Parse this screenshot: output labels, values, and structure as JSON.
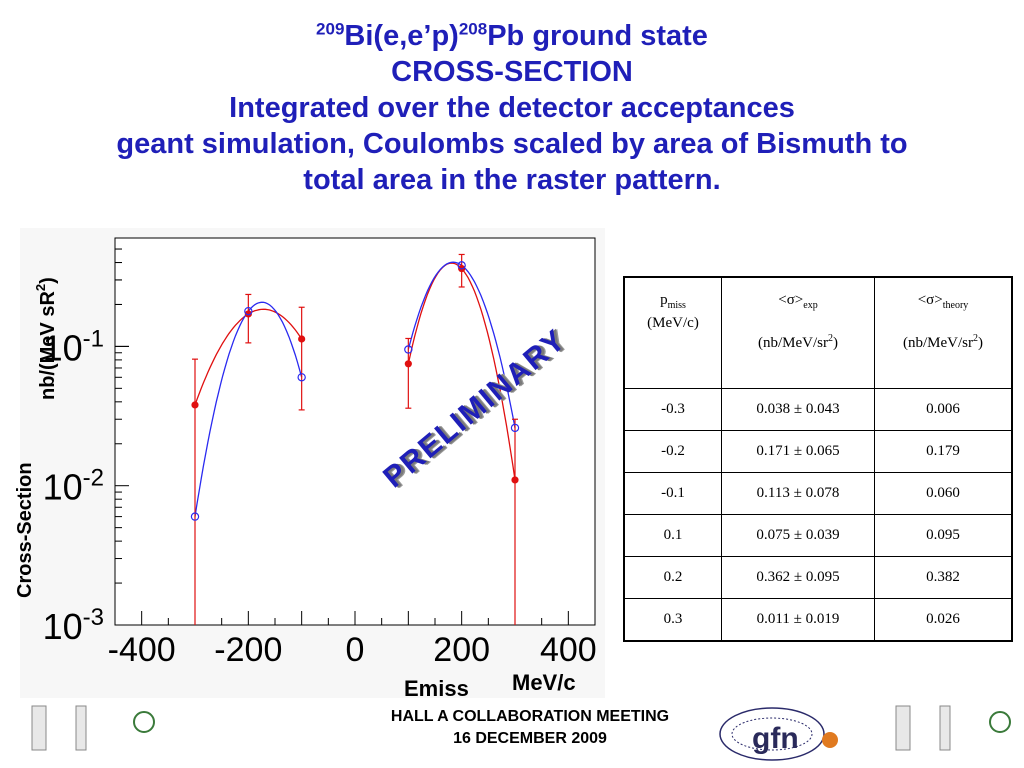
{
  "title": {
    "line1_sup1": "209",
    "line1_a": "Bi(e,e’p)",
    "line1_sup2": "208",
    "line1_b": "Pb ground state",
    "line2": "CROSS-SECTION",
    "line3": "Integrated over the detector acceptances",
    "line4": "geant simulation, Coulombs scaled by area of Bismuth to",
    "line5": "total area in the raster pattern."
  },
  "watermark": "PRELIMINARY",
  "footer": {
    "line1": "HALL A COLLABORATION MEETING",
    "line2": "16 DECEMBER 2009"
  },
  "logos": {
    "gfn_text": "gfn"
  },
  "table": {
    "header": {
      "pmiss": "p",
      "pmiss_sub": "miss",
      "pmiss_unit": "(MeV/c)",
      "exp": "<σ>",
      "exp_sub": "exp",
      "exp_unit": "(nb/MeV/sr",
      "exp_unit_sup": "2",
      "exp_unit_close": ")",
      "theory": "<σ>",
      "theory_sub": "theory",
      "theory_unit": "(nb/MeV/sr",
      "theory_unit_sup": "2",
      "theory_unit_close": ")"
    },
    "rows": [
      [
        "-0.3",
        "0.038 ± 0.043",
        "0.006"
      ],
      [
        "-0.2",
        "0.171 ± 0.065",
        "0.179"
      ],
      [
        "-0.1",
        "0.113 ± 0.078",
        "0.060"
      ],
      [
        "0.1",
        "0.075 ± 0.039",
        "0.095"
      ],
      [
        "0.2",
        "0.362 ± 0.095",
        "0.382"
      ],
      [
        "0.3",
        "0.011 ± 0.019",
        "0.026"
      ]
    ]
  },
  "chart_data": {
    "type": "scatter",
    "xlabel": "Emiss",
    "xunit": "MeV/c",
    "ylabel": "Cross-Section",
    "yunit": "nb/(MeV sR",
    "yunit_sup": "2",
    "yunit_close": ")",
    "xlim": [
      -450,
      450
    ],
    "ylim": [
      0.001,
      0.6
    ],
    "yscale": "log",
    "xticks": [
      "-400",
      "-200",
      "0",
      "200",
      "400"
    ],
    "xtick_values": [
      -400,
      -200,
      0,
      200,
      400
    ],
    "yticks": [
      {
        "base": "10",
        "exp": "-1",
        "value": 0.1
      },
      {
        "base": "10",
        "exp": "-2",
        "value": 0.01
      },
      {
        "base": "10",
        "exp": "-3",
        "value": 0.001
      }
    ],
    "colors": {
      "exp": "#e01010",
      "theory": "#2a2af0"
    },
    "series": [
      {
        "x": [
          -300,
          -200,
          -100,
          100,
          200,
          300
        ],
        "y": [
          0.038,
          0.171,
          0.113,
          0.075,
          0.362,
          0.011
        ],
        "err": [
          0.043,
          0.065,
          0.078,
          0.039,
          0.095,
          0.019
        ]
      },
      {
        "x": [
          -300,
          -200,
          -100,
          100,
          200,
          300
        ],
        "y": [
          0.006,
          0.179,
          0.06,
          0.095,
          0.382,
          0.026
        ]
      }
    ]
  }
}
